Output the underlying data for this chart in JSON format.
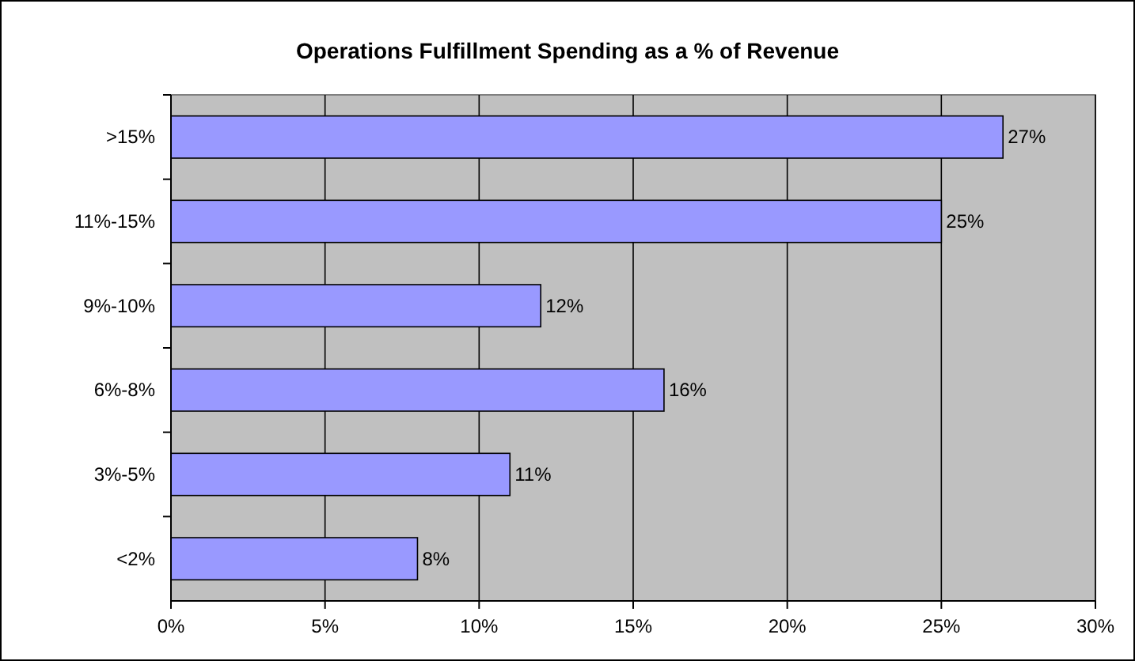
{
  "chart_data": {
    "type": "bar",
    "orientation": "horizontal",
    "title": "Operations Fulfillment Spending as a % of Revenue",
    "categories": [
      ">15%",
      "11%-15%",
      "9%-10%",
      "6%-8%",
      "3%-5%",
      "<2%"
    ],
    "values": [
      27,
      25,
      12,
      16,
      11,
      8
    ],
    "value_labels": [
      "27%",
      "25%",
      "12%",
      "16%",
      "11%",
      "8%"
    ],
    "color": "#9999ff",
    "grid": "x",
    "xlim": [
      0,
      30
    ],
    "xticks": [
      {
        "value": 0,
        "label": "0%"
      },
      {
        "value": 5,
        "label": "5%"
      },
      {
        "value": 10,
        "label": "10%"
      },
      {
        "value": 15,
        "label": "15%"
      },
      {
        "value": 20,
        "label": "20%"
      },
      {
        "value": 25,
        "label": "25%"
      },
      {
        "value": 30,
        "label": "30%"
      }
    ]
  }
}
